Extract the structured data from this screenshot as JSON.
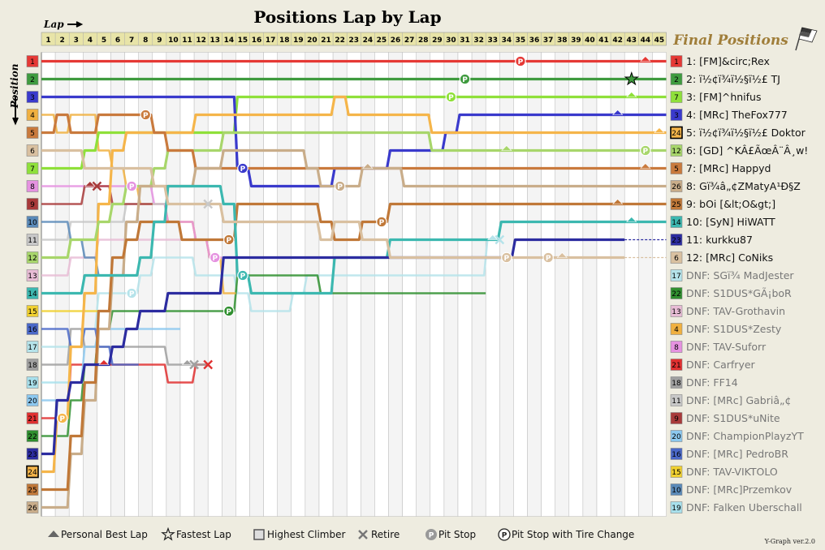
{
  "chart_data": {
    "type": "line",
    "title": "Positions Lap by Lap",
    "xlabel": "Lap",
    "ylabel": "Position",
    "laps": [
      1,
      2,
      3,
      4,
      5,
      6,
      7,
      8,
      9,
      10,
      11,
      12,
      13,
      14,
      15,
      16,
      17,
      18,
      19,
      20,
      21,
      22,
      23,
      24,
      25,
      26,
      27,
      28,
      29,
      30,
      31,
      32,
      33,
      34,
      35,
      36,
      37,
      38,
      39,
      40,
      41,
      42,
      43,
      44,
      45
    ],
    "positions": [
      1,
      2,
      3,
      4,
      5,
      6,
      7,
      8,
      9,
      10,
      11,
      12,
      13,
      14,
      15,
      16,
      17,
      18,
      19,
      20,
      21,
      22,
      23,
      24,
      25,
      26
    ],
    "legend_title": "Final Positions",
    "drivers": [
      {
        "id": 1,
        "name": "[FM]&circ;Rex",
        "color": "#e53935",
        "finish": "1",
        "dnf": false,
        "pos": [
          1,
          1,
          1,
          1,
          1,
          1,
          1,
          1,
          1,
          1,
          1,
          1,
          1,
          1,
          1,
          1,
          1,
          1,
          1,
          1,
          1,
          1,
          1,
          1,
          1,
          1,
          1,
          1,
          1,
          1,
          1,
          1,
          1,
          1,
          1,
          1,
          1,
          1,
          1,
          1,
          1,
          1,
          1,
          1,
          1
        ],
        "pits": [
          35
        ],
        "pbl": [
          44
        ],
        "fl": [],
        "retire": null
      },
      {
        "id": 2,
        "name": "ï½¢ï¾ï½§ï½£ TJ",
        "color": "#3f9b3f",
        "finish": "2",
        "dnf": false,
        "pos": [
          2,
          2,
          2,
          2,
          2,
          2,
          2,
          2,
          2,
          2,
          2,
          2,
          2,
          2,
          2,
          2,
          2,
          2,
          2,
          2,
          2,
          2,
          2,
          2,
          2,
          2,
          2,
          2,
          2,
          2,
          2,
          2,
          2,
          2,
          2,
          2,
          2,
          2,
          2,
          2,
          2,
          2,
          2,
          2,
          2
        ],
        "pits": [
          31
        ],
        "pbl": [],
        "fl": [
          43
        ],
        "retire": null
      },
      {
        "id": 7,
        "name": "[FM]^hnifus",
        "color": "#8fe03a",
        "finish": "3",
        "dnf": false,
        "pos": [
          7,
          7,
          7,
          6,
          5,
          5,
          5,
          5,
          5,
          5,
          5,
          5,
          5,
          5,
          3,
          3,
          3,
          3,
          3,
          3,
          3,
          3,
          3,
          3,
          3,
          3,
          3,
          3,
          3,
          3,
          3,
          3,
          3,
          3,
          3,
          3,
          3,
          3,
          3,
          3,
          3,
          3,
          3,
          3,
          3
        ],
        "pits": [
          30
        ],
        "pbl": [
          43
        ],
        "fl": [],
        "retire": null
      },
      {
        "id": 3,
        "name": "[MRc] TheFox777",
        "color": "#3a3acc",
        "finish": "4",
        "dnf": false,
        "pos": [
          3,
          3,
          3,
          3,
          3,
          3,
          3,
          3,
          3,
          3,
          3,
          3,
          3,
          3,
          7,
          8,
          8,
          8,
          8,
          8,
          8,
          7,
          7,
          7,
          7,
          6,
          6,
          6,
          6,
          5,
          4,
          4,
          4,
          4,
          4,
          4,
          4,
          4,
          4,
          4,
          4,
          4,
          4,
          4,
          4
        ],
        "pits": [
          15
        ],
        "pbl": [
          42
        ],
        "fl": [],
        "retire": null
      },
      {
        "id": 24,
        "name": "ï½¢ï¾ï½§ï½£ Doktor",
        "color": "#f5b54a",
        "finish": "5",
        "dnf": false,
        "pos": [
          24,
          21,
          17,
          14,
          9,
          6,
          5,
          5,
          5,
          5,
          5,
          4,
          4,
          4,
          4,
          4,
          4,
          4,
          4,
          4,
          4,
          3,
          4,
          4,
          4,
          4,
          4,
          4,
          5,
          5,
          5,
          5,
          5,
          5,
          5,
          5,
          5,
          5,
          5,
          5,
          5,
          5,
          5,
          5,
          5
        ],
        "pits": [
          2
        ],
        "pbl": [
          45
        ],
        "fl": [],
        "retire": null
      },
      {
        "id": 12,
        "name": "[GD] ^KÂ£ÃœÂ¨Â¸w!",
        "color": "#a8d66b",
        "finish": "6",
        "dnf": false,
        "pos": [
          12,
          12,
          11,
          11,
          10,
          9,
          8,
          8,
          7,
          6,
          6,
          6,
          6,
          5,
          5,
          5,
          5,
          5,
          5,
          5,
          5,
          5,
          5,
          5,
          5,
          5,
          5,
          5,
          6,
          6,
          6,
          6,
          6,
          6,
          6,
          6,
          6,
          6,
          6,
          6,
          6,
          6,
          6,
          6,
          6
        ],
        "pits": [
          44
        ],
        "pbl": [
          34
        ],
        "fl": [],
        "retire": null
      },
      {
        "id": 5,
        "name": "[MRc] Happyd",
        "color": "#c97a3d",
        "finish": "7",
        "dnf": false,
        "pos": [
          5,
          4,
          5,
          5,
          4,
          4,
          4,
          4,
          5,
          6,
          6,
          7,
          7,
          7,
          7,
          7,
          7,
          7,
          7,
          7,
          7,
          7,
          7,
          7,
          7,
          7,
          7,
          7,
          7,
          7,
          7,
          7,
          7,
          7,
          7,
          7,
          7,
          7,
          7,
          7,
          7,
          7,
          7,
          7,
          7
        ],
        "pits": [
          8
        ],
        "pbl": [
          44
        ],
        "fl": [],
        "retire": null
      },
      {
        "id": 26,
        "name": "Gï¾â„¢ZMatyA¹Ð§Z",
        "color": "#c9ad8a",
        "finish": "8",
        "dnf": false,
        "pos": [
          26,
          26,
          23,
          20,
          16,
          13,
          10,
          8,
          8,
          8,
          8,
          7,
          7,
          6,
          6,
          6,
          6,
          6,
          6,
          7,
          8,
          8,
          8,
          7,
          7,
          7,
          8,
          8,
          8,
          8,
          8,
          8,
          8,
          8,
          8,
          8,
          8,
          8,
          8,
          8,
          8,
          8,
          8,
          8,
          8
        ],
        "pits": [
          22
        ],
        "pbl": [
          24
        ],
        "fl": [],
        "retire": null
      },
      {
        "id": 25,
        "name": "bOi [&lt;O&gt;]",
        "color": "#c07838",
        "finish": "9",
        "dnf": false,
        "pos": [
          25,
          25,
          22,
          19,
          15,
          12,
          11,
          10,
          10,
          10,
          11,
          11,
          11,
          11,
          9,
          9,
          9,
          9,
          9,
          9,
          10,
          11,
          11,
          10,
          10,
          9,
          9,
          9,
          9,
          9,
          9,
          9,
          9,
          9,
          9,
          9,
          9,
          9,
          9,
          9,
          9,
          9,
          9,
          9,
          9
        ],
        "pits": [
          14,
          25
        ],
        "pbl": [
          42
        ],
        "fl": [],
        "retire": null
      },
      {
        "id": 14,
        "name": "[SyN] HiWATT",
        "color": "#3cb8b0",
        "finish": "10",
        "dnf": false,
        "pos": [
          14,
          14,
          14,
          13,
          13,
          13,
          13,
          12,
          10,
          8,
          8,
          8,
          8,
          9,
          13,
          14,
          14,
          14,
          14,
          14,
          14,
          12,
          12,
          12,
          12,
          11,
          11,
          11,
          11,
          11,
          11,
          11,
          11,
          10,
          10,
          10,
          10,
          10,
          10,
          10,
          10,
          10,
          10,
          10,
          10
        ],
        "pits": [
          15
        ],
        "pbl": [
          43
        ],
        "fl": [],
        "retire": null
      },
      {
        "id": 23,
        "name": "kurkku87",
        "color": "#2c2ca0",
        "finish": "11",
        "dnf": false,
        "pos": [
          23,
          20,
          19,
          18,
          18,
          17,
          16,
          15,
          15,
          14,
          14,
          14,
          14,
          12,
          12,
          12,
          12,
          12,
          12,
          12,
          12,
          12,
          12,
          12,
          12,
          12,
          12,
          12,
          12,
          12,
          12,
          12,
          12,
          12,
          11,
          11,
          11,
          11,
          11,
          11,
          11,
          11
        ],
        "pits": [],
        "pbl": [],
        "fl": [],
        "retire": null
      },
      {
        "id": 6,
        "name": "[MRc] CoNiks",
        "color": "#d9c0a0",
        "finish": "12",
        "dnf": false,
        "pos": [
          6,
          6,
          6,
          7,
          7,
          7,
          7,
          7,
          8,
          9,
          9,
          9,
          9,
          10,
          10,
          10,
          10,
          10,
          10,
          10,
          11,
          10,
          10,
          11,
          11,
          12,
          12,
          12,
          12,
          12,
          12,
          12,
          12,
          12,
          12,
          12,
          12,
          12,
          12,
          12,
          12,
          12
        ],
        "pits": [
          34,
          37
        ],
        "pbl": [
          38
        ],
        "fl": [],
        "retire": null
      },
      {
        "id": 17,
        "name": "SGï¾ MadJester",
        "color": "#b5e3ea",
        "finish": "DNF",
        "dnf": true,
        "pos": [
          17,
          17,
          17,
          16,
          14,
          14,
          14,
          13,
          12,
          12,
          12,
          13,
          13,
          13,
          14,
          15,
          15,
          15,
          14,
          13,
          13,
          13,
          13,
          13,
          13,
          13,
          13,
          13,
          13,
          13,
          13,
          13,
          11
        ],
        "pits": [
          7
        ],
        "pbl": [
          33
        ],
        "fl": [],
        "retire": 33
      },
      {
        "id": 22,
        "name": "S1DUS*GÃ¡boR",
        "color": "#2f8f2f",
        "finish": "DNF",
        "dnf": true,
        "pos": [
          22,
          22,
          20,
          18,
          16,
          15,
          15,
          15,
          15,
          15,
          15,
          15,
          15,
          15,
          13,
          13,
          13,
          13,
          13,
          13,
          14,
          14,
          14,
          14,
          14,
          14,
          14,
          14,
          14,
          14,
          14,
          14
        ],
        "pits": [
          14
        ],
        "pbl": [],
        "fl": [],
        "retire": null
      },
      {
        "id": 13,
        "name": "TAV-Grothavin",
        "color": "#e8bcd5",
        "finish": "DNF",
        "dnf": true,
        "pos": [
          13,
          13,
          12,
          12,
          11,
          11,
          11,
          11,
          11,
          11,
          11,
          11,
          12
        ],
        "pits": [],
        "pbl": [],
        "fl": [],
        "retire": null
      },
      {
        "id": 4,
        "name": "S1DUS*Zesty",
        "color": "#f0b040",
        "finish": "DNF",
        "dnf": true,
        "pos": [
          4,
          5,
          4,
          4,
          6,
          7,
          8,
          9,
          9,
          10,
          10,
          11,
          12,
          14
        ],
        "pits": [],
        "pbl": [],
        "fl": [],
        "retire": null
      },
      {
        "id": 8,
        "name": "TAV-Suforr",
        "color": "#e592e0",
        "finish": "DNF",
        "dnf": true,
        "pos": [
          8,
          8,
          8,
          8,
          8,
          8,
          8,
          8,
          9,
          10,
          10,
          11,
          12
        ],
        "pits": [
          7,
          13
        ],
        "pbl": [
          7
        ],
        "fl": [],
        "retire": null
      },
      {
        "id": 21,
        "name": "Carfryer",
        "color": "#e03030",
        "finish": "DNF",
        "dnf": true,
        "pos": [
          21,
          21,
          18,
          18,
          18,
          18,
          18,
          18,
          18,
          19,
          19,
          18
        ],
        "pits": [],
        "pbl": [
          5
        ],
        "fl": [],
        "retire": 12
      },
      {
        "id": 18,
        "name": "FF14",
        "color": "#a0a0a0",
        "finish": "DNF",
        "dnf": true,
        "pos": [
          18,
          18,
          16,
          17,
          17,
          17,
          17,
          17,
          17,
          18,
          18,
          18
        ],
        "pits": [],
        "pbl": [
          11
        ],
        "fl": [],
        "retire": 11
      },
      {
        "id": 11,
        "name": "[MRc] Gabriâ„¢",
        "color": "#c8c8c8",
        "finish": "DNF",
        "dnf": true,
        "pos": [
          11,
          11,
          10,
          10,
          10,
          10,
          9,
          9,
          9,
          9,
          9,
          9
        ],
        "pits": [],
        "pbl": [],
        "fl": [],
        "retire": 12
      },
      {
        "id": 9,
        "name": "S1DUS*uNite",
        "color": "#a83a3a",
        "finish": "DNF",
        "dnf": true,
        "pos": [
          9,
          9,
          9,
          8,
          8,
          9,
          9,
          9
        ],
        "pits": [],
        "pbl": [
          4
        ],
        "fl": [],
        "retire": 4
      },
      {
        "id": 20,
        "name": "ChampionPlayzYT",
        "color": "#8cc8ef",
        "finish": "DNF",
        "dnf": true,
        "pos": [
          20,
          20,
          19,
          17,
          16,
          16,
          16,
          16,
          16,
          16
        ],
        "pits": [],
        "pbl": [],
        "fl": [],
        "retire": null
      },
      {
        "id": 16,
        "name": "[MRc] PedroBR",
        "color": "#4a68c8",
        "finish": "DNF",
        "dnf": true,
        "pos": [
          16,
          16,
          17,
          16,
          17,
          18,
          18
        ],
        "pits": [],
        "pbl": [],
        "fl": [],
        "retire": null
      },
      {
        "id": 15,
        "name": "TAV-VIKTOLO",
        "color": "#f0d030",
        "finish": "DNF",
        "dnf": true,
        "pos": [
          15,
          15,
          15,
          15,
          15
        ],
        "pits": [],
        "pbl": [],
        "fl": [],
        "retire": null
      },
      {
        "id": 10,
        "name": "[MRc]Przemkov",
        "color": "#5a8ab8",
        "finish": "DNF",
        "dnf": true,
        "pos": [
          10,
          10,
          11,
          12,
          13
        ],
        "pits": [],
        "pbl": [],
        "fl": [],
        "retire": null
      },
      {
        "id": 19,
        "name": "Falken Uberschall",
        "color": "#a8e0ec",
        "finish": "DNF",
        "dnf": true,
        "pos": [
          19,
          19,
          19,
          19
        ],
        "pits": [],
        "pbl": [],
        "fl": [],
        "retire": null
      }
    ]
  },
  "key": {
    "personal_best": "Personal Best Lap",
    "fastest": "Fastest Lap",
    "climber": "Highest Climber",
    "retire": "Retire",
    "pit": "Pit Stop",
    "pit_tire": "Pit Stop with Tire Change"
  },
  "version": "Y-Graph ver.2.0",
  "colors": {
    "background": "#eeece0",
    "header_row": "#e8e4a8",
    "grid": "#bbbbbb",
    "odd_lap": "#ffffff",
    "even_lap": "#f4f4f4"
  }
}
